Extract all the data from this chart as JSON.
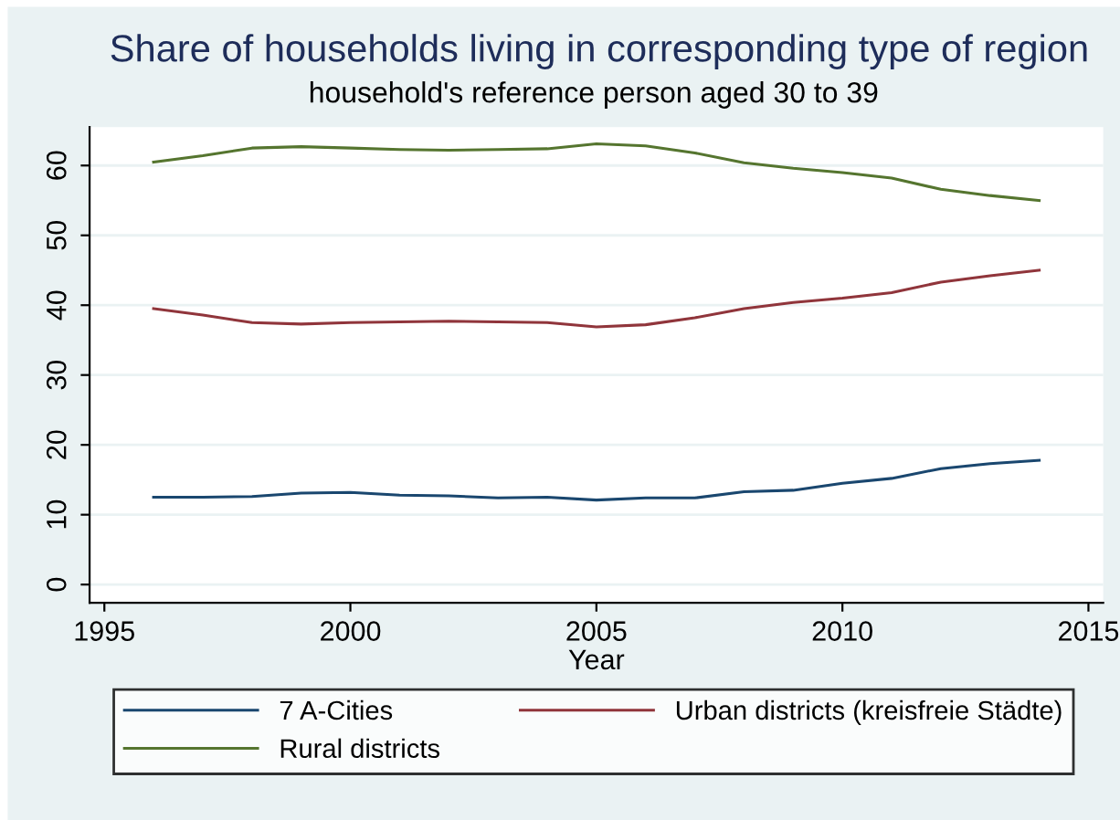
{
  "chart_data": {
    "type": "line",
    "title": "Share of households living in corresponding type of region",
    "subtitle": "household's reference person aged 30 to 39",
    "xlabel": "Year",
    "x": [
      1996,
      1997,
      1998,
      1999,
      2000,
      2001,
      2002,
      2003,
      2004,
      2005,
      2006,
      2007,
      2008,
      2009,
      2010,
      2011,
      2012,
      2013,
      2014
    ],
    "series": [
      {
        "name": "7 A-Cities",
        "color": "#1a476f",
        "values": [
          12.5,
          12.5,
          12.6,
          13.1,
          13.2,
          12.8,
          12.7,
          12.4,
          12.5,
          12.1,
          12.4,
          12.4,
          13.3,
          13.5,
          14.5,
          15.2,
          16.6,
          17.3,
          17.8
        ]
      },
      {
        "name": "Urban districts (kreisfreie Städte)",
        "color": "#90353b",
        "values": [
          39.5,
          38.6,
          37.5,
          37.3,
          37.5,
          37.6,
          37.7,
          37.6,
          37.5,
          36.9,
          37.2,
          38.2,
          39.5,
          40.4,
          41.0,
          41.8,
          43.3,
          44.2,
          45.0
        ]
      },
      {
        "name": "Rural districts",
        "color": "#55752f",
        "values": [
          60.5,
          61.4,
          62.5,
          62.7,
          62.5,
          62.3,
          62.2,
          62.3,
          62.4,
          63.1,
          62.8,
          61.8,
          60.4,
          59.6,
          59.0,
          58.2,
          56.6,
          55.7,
          55.0
        ]
      }
    ],
    "xlim": [
      1994.7,
      2015.3
    ],
    "ylim": [
      -2.6,
      65.5
    ],
    "xticks": [
      1995,
      2000,
      2005,
      2010,
      2015
    ],
    "yticks": [
      0,
      10,
      20,
      30,
      40,
      50,
      60
    ],
    "grid": "y",
    "legend": "bottom",
    "line_style": "solid"
  }
}
